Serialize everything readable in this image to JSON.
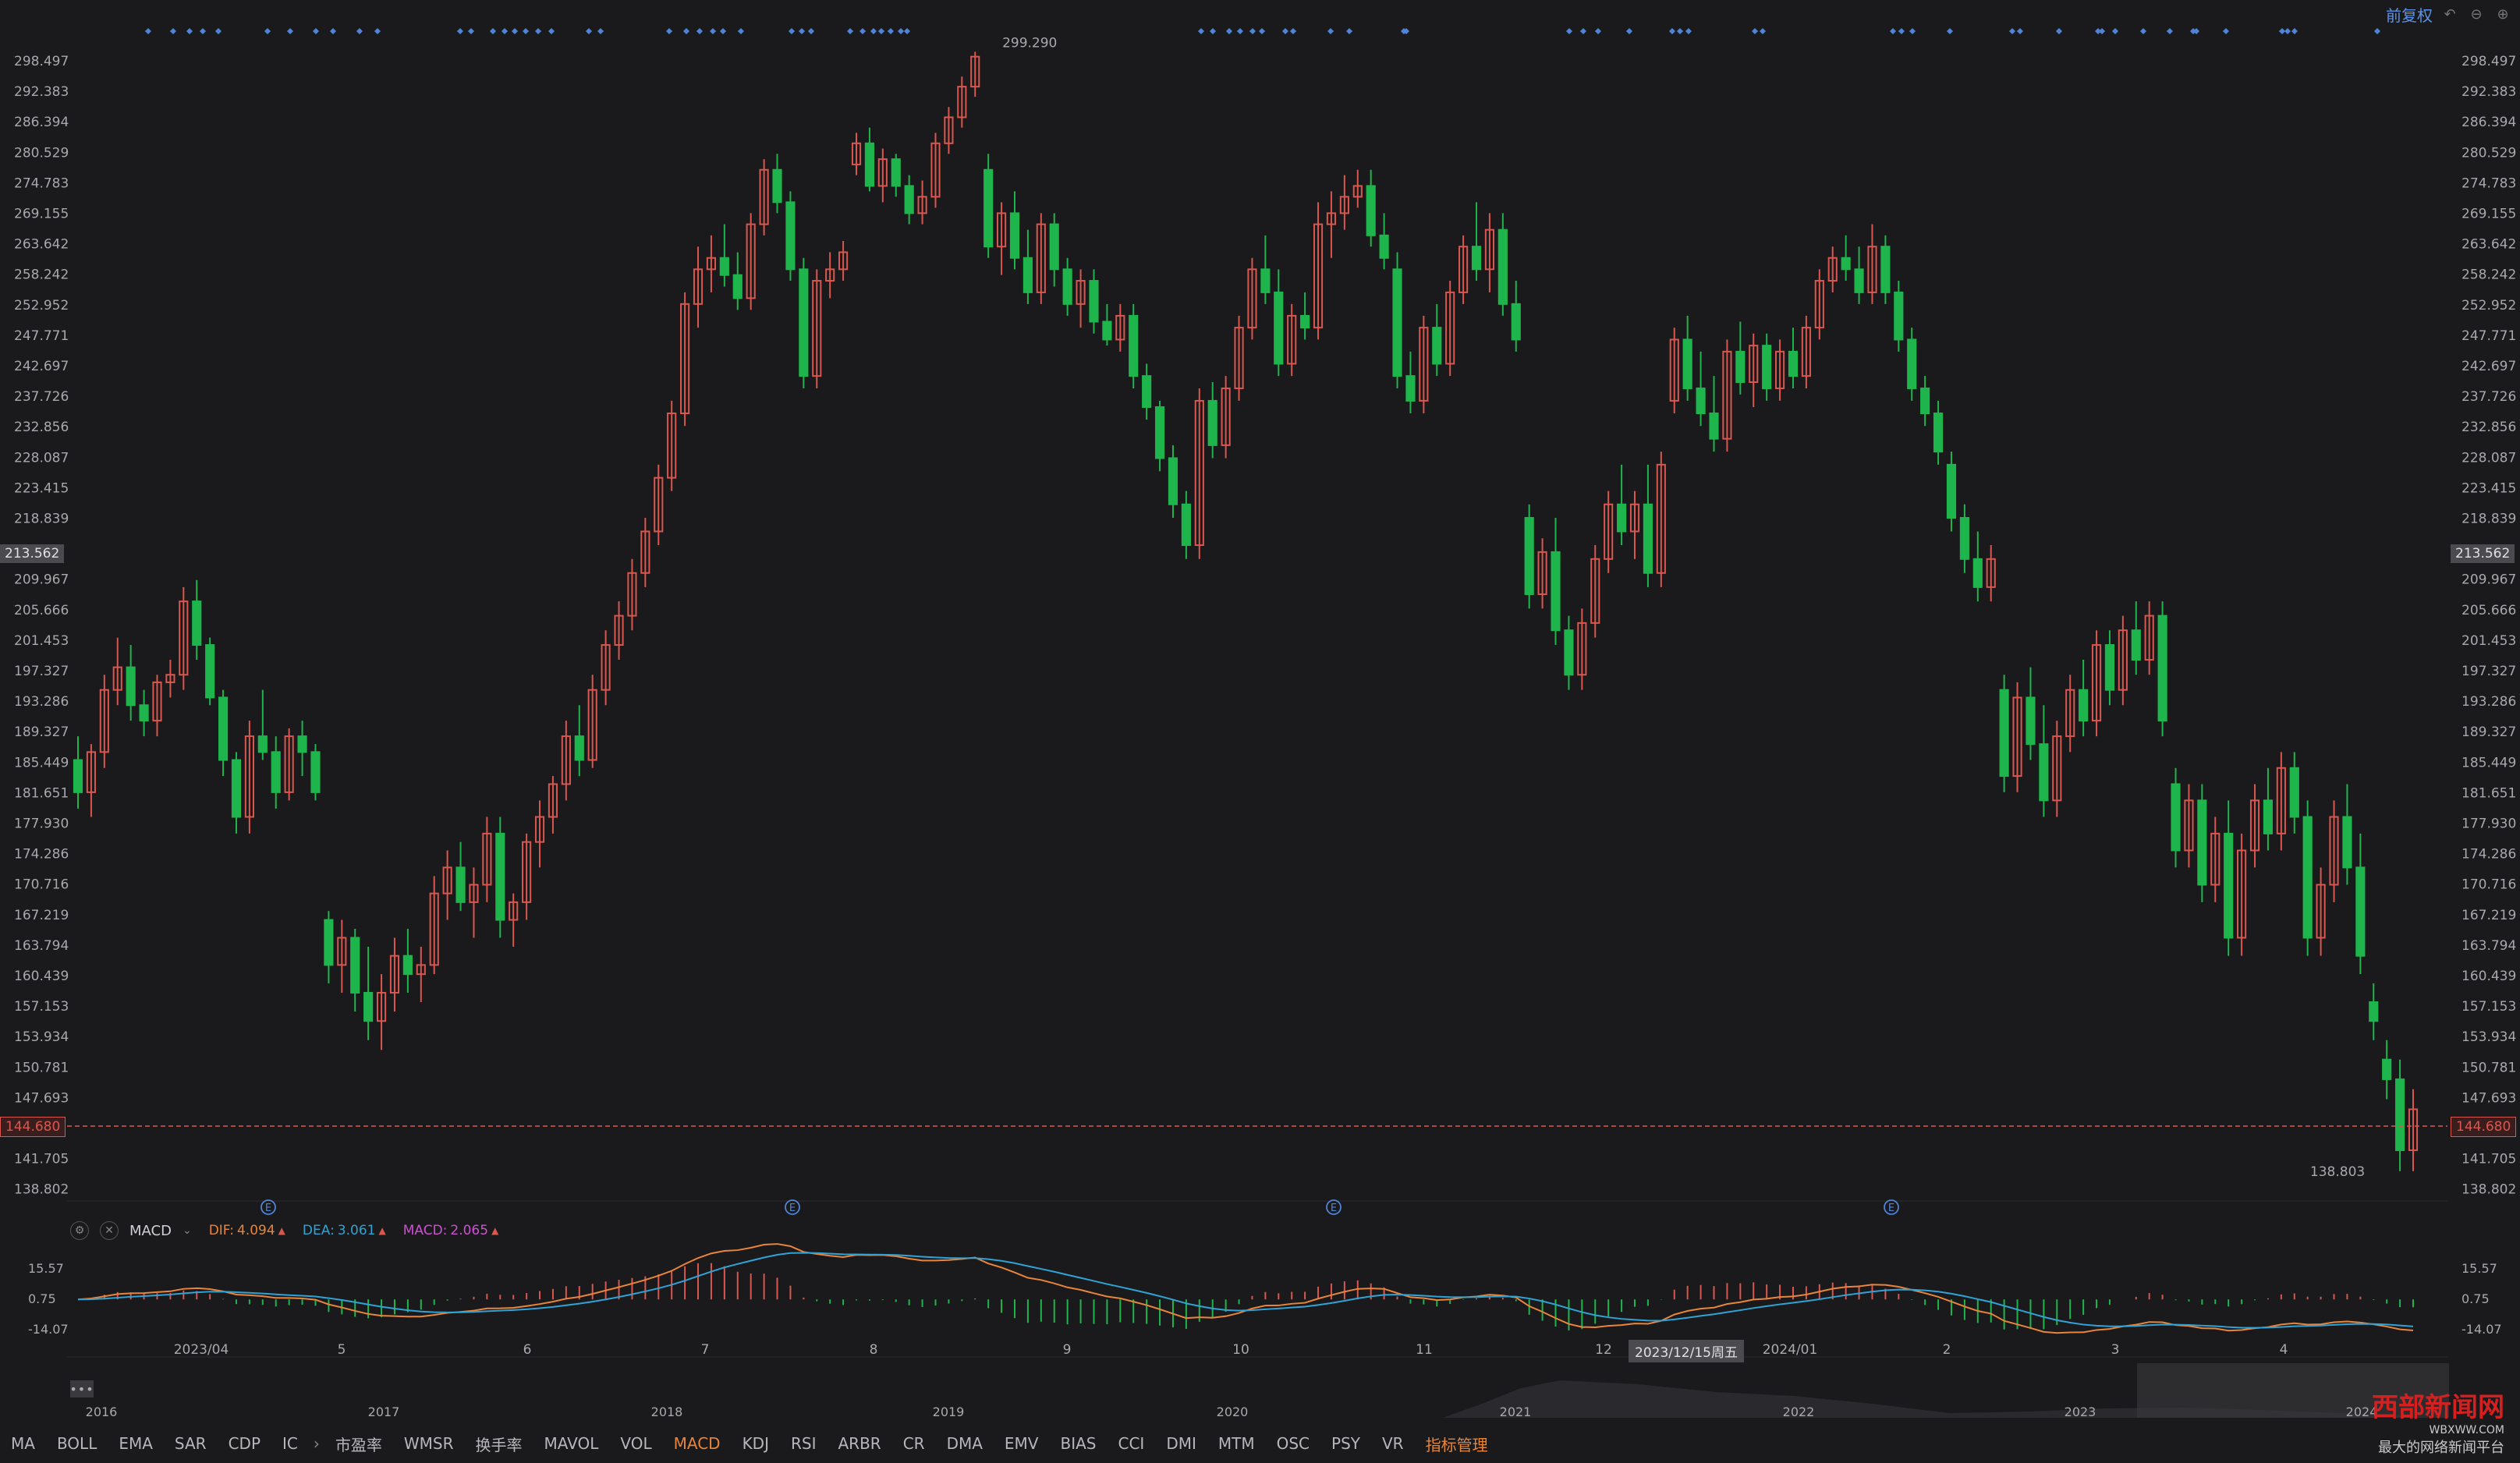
{
  "toolbar": {
    "adjust_label": "前复权"
  },
  "chart_data": {
    "type": "candlestick",
    "price_axis_ticks": [
      "298.497",
      "292.383",
      "286.394",
      "280.529",
      "274.783",
      "269.155",
      "263.642",
      "258.242",
      "252.952",
      "247.771",
      "242.697",
      "237.726",
      "232.856",
      "228.087",
      "223.415",
      "218.839",
      "213.562",
      "209.967",
      "205.666",
      "201.453",
      "197.327",
      "193.286",
      "189.327",
      "185.449",
      "181.651",
      "177.930",
      "174.286",
      "170.716",
      "167.219",
      "163.794",
      "160.439",
      "157.153",
      "153.934",
      "150.781",
      "147.693",
      "144.680",
      "141.705",
      "138.802"
    ],
    "price_ylim": [
      137.2,
      300
    ],
    "log_scale": true,
    "high_label": "299.290",
    "low_label": "138.803",
    "current_price": "144.680",
    "crosshair_price": "213.562",
    "crosshair_date": "2023/12/15周五",
    "x_tick_labels": [
      "2023/04",
      "5",
      "6",
      "7",
      "8",
      "9",
      "10",
      "11",
      "12",
      "2024/01",
      "2",
      "3",
      "4"
    ],
    "earnings_marker": "E",
    "candles": [
      [
        185,
        188,
        179,
        181
      ],
      [
        181,
        187,
        178,
        186
      ],
      [
        186,
        196,
        184,
        194
      ],
      [
        194,
        201,
        192,
        197
      ],
      [
        197,
        200,
        190,
        192
      ],
      [
        192,
        194,
        188,
        190
      ],
      [
        190,
        196,
        188,
        195
      ],
      [
        195,
        198,
        193,
        196
      ],
      [
        196,
        208,
        194,
        206
      ],
      [
        206,
        209,
        198,
        200
      ],
      [
        200,
        201,
        192,
        193
      ],
      [
        193,
        194,
        183,
        185
      ],
      [
        185,
        186,
        176,
        178
      ],
      [
        178,
        190,
        176,
        188
      ],
      [
        188,
        194,
        185,
        186
      ],
      [
        186,
        188,
        179,
        181
      ],
      [
        181,
        189,
        180,
        188
      ],
      [
        188,
        190,
        183,
        186
      ],
      [
        186,
        187,
        180,
        181
      ],
      [
        166,
        167,
        159,
        161
      ],
      [
        161,
        166,
        158,
        164
      ],
      [
        164,
        165,
        156,
        158
      ],
      [
        158,
        163,
        153,
        155
      ],
      [
        155,
        160,
        152,
        158
      ],
      [
        158,
        164,
        156,
        162
      ],
      [
        162,
        165,
        158,
        160
      ],
      [
        160,
        163,
        157,
        161
      ],
      [
        161,
        171,
        160,
        169
      ],
      [
        169,
        174,
        166,
        172
      ],
      [
        172,
        175,
        167,
        168
      ],
      [
        168,
        172,
        164,
        170
      ],
      [
        170,
        178,
        168,
        176
      ],
      [
        176,
        178,
        164,
        166
      ],
      [
        166,
        169,
        163,
        168
      ],
      [
        168,
        176,
        166,
        175
      ],
      [
        175,
        180,
        172,
        178
      ],
      [
        178,
        183,
        176,
        182
      ],
      [
        182,
        190,
        180,
        188
      ],
      [
        188,
        192,
        183,
        185
      ],
      [
        185,
        196,
        184,
        194
      ],
      [
        194,
        202,
        192,
        200
      ],
      [
        200,
        206,
        198,
        204
      ],
      [
        204,
        212,
        202,
        210
      ],
      [
        210,
        218,
        208,
        216
      ],
      [
        216,
        226,
        214,
        224
      ],
      [
        224,
        236,
        222,
        234
      ],
      [
        234,
        254,
        232,
        252
      ],
      [
        252,
        262,
        248,
        258
      ],
      [
        258,
        264,
        254,
        260
      ],
      [
        260,
        266,
        255,
        257
      ],
      [
        257,
        261,
        251,
        253
      ],
      [
        253,
        268,
        251,
        266
      ],
      [
        266,
        278,
        264,
        276
      ],
      [
        276,
        279,
        268,
        270
      ],
      [
        270,
        272,
        256,
        258
      ],
      [
        258,
        260,
        238,
        240
      ],
      [
        240,
        258,
        238,
        256
      ],
      [
        256,
        261,
        253,
        258
      ],
      [
        258,
        263,
        256,
        261
      ],
      [
        277,
        283,
        275,
        281
      ],
      [
        281,
        284,
        272,
        273
      ],
      [
        273,
        280,
        270,
        278
      ],
      [
        278,
        279,
        271,
        273
      ],
      [
        273,
        275,
        266,
        268
      ],
      [
        268,
        274,
        266,
        271
      ],
      [
        271,
        283,
        269,
        281
      ],
      [
        281,
        288,
        279,
        286
      ],
      [
        286,
        294,
        284,
        292
      ],
      [
        292,
        299,
        290,
        298
      ],
      [
        276,
        279,
        260,
        262
      ],
      [
        262,
        270,
        257,
        268
      ],
      [
        268,
        272,
        258,
        260
      ],
      [
        260,
        265,
        252,
        254
      ],
      [
        254,
        268,
        252,
        266
      ],
      [
        266,
        268,
        255,
        258
      ],
      [
        258,
        260,
        250,
        252
      ],
      [
        252,
        258,
        248,
        256
      ],
      [
        256,
        258,
        247,
        249
      ],
      [
        249,
        252,
        245,
        246
      ],
      [
        246,
        252,
        244,
        250
      ],
      [
        250,
        252,
        238,
        240
      ],
      [
        240,
        242,
        233,
        235
      ],
      [
        235,
        236,
        225,
        227
      ],
      [
        227,
        229,
        218,
        220
      ],
      [
        220,
        222,
        212,
        214
      ],
      [
        214,
        238,
        212,
        236
      ],
      [
        236,
        239,
        227,
        229
      ],
      [
        229,
        240,
        227,
        238
      ],
      [
        238,
        250,
        236,
        248
      ],
      [
        248,
        260,
        246,
        258
      ],
      [
        258,
        264,
        252,
        254
      ],
      [
        254,
        258,
        240,
        242
      ],
      [
        242,
        252,
        240,
        250
      ],
      [
        250,
        254,
        246,
        248
      ],
      [
        248,
        270,
        246,
        266
      ],
      [
        266,
        272,
        260,
        268
      ],
      [
        268,
        275,
        265,
        271
      ],
      [
        271,
        276,
        269,
        273
      ],
      [
        273,
        276,
        262,
        264
      ],
      [
        264,
        268,
        258,
        260
      ],
      [
        258,
        261,
        238,
        240
      ],
      [
        240,
        244,
        234,
        236
      ],
      [
        236,
        250,
        234,
        248
      ],
      [
        248,
        252,
        240,
        242
      ],
      [
        242,
        256,
        240,
        254
      ],
      [
        254,
        264,
        252,
        262
      ],
      [
        262,
        270,
        256,
        258
      ],
      [
        258,
        268,
        254,
        265
      ],
      [
        265,
        268,
        250,
        252
      ],
      [
        252,
        256,
        244,
        246
      ],
      [
        218,
        220,
        205,
        207
      ],
      [
        207,
        215,
        205,
        213
      ],
      [
        213,
        218,
        200,
        202
      ],
      [
        202,
        204,
        194,
        196
      ],
      [
        196,
        205,
        194,
        203
      ],
      [
        203,
        214,
        201,
        212
      ],
      [
        212,
        222,
        210,
        220
      ],
      [
        220,
        226,
        214,
        216
      ],
      [
        216,
        222,
        212,
        220
      ],
      [
        220,
        226,
        208,
        210
      ],
      [
        210,
        228,
        208,
        226
      ],
      [
        236,
        248,
        234,
        246
      ],
      [
        246,
        250,
        236,
        238
      ],
      [
        238,
        244,
        232,
        234
      ],
      [
        234,
        240,
        228,
        230
      ],
      [
        230,
        246,
        228,
        244
      ],
      [
        244,
        249,
        237,
        239
      ],
      [
        239,
        247,
        235,
        245
      ],
      [
        245,
        247,
        236,
        238
      ],
      [
        238,
        246,
        236,
        244
      ],
      [
        244,
        248,
        238,
        240
      ],
      [
        240,
        250,
        238,
        248
      ],
      [
        248,
        258,
        246,
        256
      ],
      [
        256,
        262,
        254,
        260
      ],
      [
        260,
        264,
        256,
        258
      ],
      [
        258,
        262,
        252,
        254
      ],
      [
        254,
        266,
        252,
        262
      ],
      [
        262,
        264,
        252,
        254
      ],
      [
        254,
        256,
        244,
        246
      ],
      [
        246,
        248,
        236,
        238
      ],
      [
        238,
        240,
        232,
        234
      ],
      [
        234,
        236,
        226,
        228
      ],
      [
        226,
        228,
        216,
        218
      ],
      [
        218,
        220,
        210,
        212
      ],
      [
        212,
        216,
        206,
        208
      ],
      [
        208,
        214,
        206,
        212
      ],
      [
        194,
        196,
        181,
        183
      ],
      [
        183,
        195,
        181,
        193
      ],
      [
        193,
        197,
        185,
        187
      ],
      [
        187,
        192,
        178,
        180
      ],
      [
        180,
        190,
        178,
        188
      ],
      [
        188,
        196,
        186,
        194
      ],
      [
        194,
        198,
        188,
        190
      ],
      [
        190,
        202,
        188,
        200
      ],
      [
        200,
        202,
        192,
        194
      ],
      [
        194,
        204,
        192,
        202
      ],
      [
        202,
        206,
        196,
        198
      ],
      [
        198,
        206,
        196,
        204
      ],
      [
        204,
        206,
        188,
        190
      ],
      [
        182,
        184,
        172,
        174
      ],
      [
        174,
        182,
        172,
        180
      ],
      [
        180,
        182,
        168,
        170
      ],
      [
        170,
        178,
        168,
        176
      ],
      [
        176,
        180,
        162,
        164
      ],
      [
        164,
        176,
        162,
        174
      ],
      [
        174,
        182,
        172,
        180
      ],
      [
        180,
        184,
        174,
        176
      ],
      [
        176,
        186,
        174,
        184
      ],
      [
        184,
        186,
        176,
        178
      ],
      [
        178,
        180,
        162,
        164
      ],
      [
        164,
        172,
        162,
        170
      ],
      [
        170,
        180,
        168,
        178
      ],
      [
        178,
        182,
        170,
        172
      ],
      [
        172,
        176,
        160,
        162
      ],
      [
        157,
        159,
        153,
        155
      ],
      [
        151,
        153,
        147,
        149
      ],
      [
        149,
        151,
        140,
        142
      ],
      [
        142,
        148,
        140,
        146
      ]
    ],
    "macd": {
      "dif_label": "DIF:",
      "dif_value": "4.094",
      "dea_label": "DEA:",
      "dea_value": "3.061",
      "macd_label": "MACD:",
      "macd_value": "2.065",
      "ticks": [
        "15.57",
        "0.75",
        "-14.07"
      ],
      "ylim": [
        -14.07,
        15.57
      ],
      "colors": {
        "dif": "#e8853a",
        "dea": "#2fa3d6",
        "macd": "#d04ed6"
      }
    },
    "overview_years": [
      "2016",
      "2017",
      "2018",
      "2019",
      "2020",
      "2021",
      "2022",
      "2023",
      "2024"
    ]
  },
  "bottom_tabs": [
    "MA",
    "BOLL",
    "EMA",
    "SAR",
    "CDP",
    "IC",
    "市盈率",
    "WMSR",
    "换手率",
    "MAVOL",
    "VOL",
    "MACD",
    "KDJ",
    "RSI",
    "ARBR",
    "CR",
    "DMA",
    "EMV",
    "BIAS",
    "CCI",
    "DMI",
    "MTM",
    "OSC",
    "PSY",
    "VR"
  ],
  "active_tab": "MACD",
  "manage_tab": "指标管理",
  "watermark": {
    "main": "西部新闻网",
    "url": "WBXWW.COM",
    "sub": "最大的网络新闻平台"
  },
  "colors": {
    "up": "#d9574f",
    "down": "#1fb54d",
    "axis_text": "#a9a9ad",
    "accent": "#5b93e8"
  }
}
